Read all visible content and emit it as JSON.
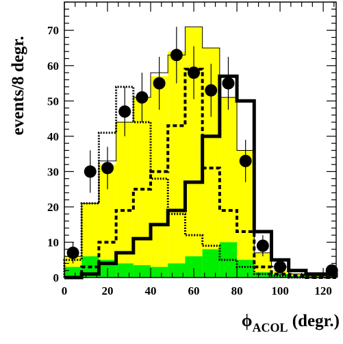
{
  "chart_data": {
    "type": "bar",
    "xlabel": {
      "symbol": "ϕ",
      "subscript": "ACOL",
      "unit": "(degr.)"
    },
    "ylabel": "events/8 degr.",
    "xlim": [
      0,
      126
    ],
    "ylim": [
      0,
      78
    ],
    "x_ticks": [
      0,
      20,
      40,
      60,
      80,
      100,
      120
    ],
    "y_ticks": [
      0,
      10,
      20,
      30,
      40,
      50,
      60,
      70
    ],
    "bin_edges": [
      0,
      8,
      16,
      24,
      32,
      40,
      48,
      56,
      64,
      72,
      80,
      88,
      96,
      104,
      112,
      120,
      126
    ],
    "colors": {
      "yellow": "#ffff00",
      "green": "#00ee00",
      "line": "#000000",
      "points": "#000000"
    },
    "series": [
      {
        "style": "filled-yellow-total",
        "values": [
          6,
          21,
          32,
          44,
          51,
          57,
          64,
          71,
          65,
          51,
          36,
          7,
          2,
          1,
          0.5,
          0.5
        ]
      },
      {
        "style": "filled-green",
        "values": [
          3,
          6,
          5,
          4,
          3.5,
          3,
          4,
          6,
          8,
          10,
          5,
          1.5,
          1,
          0.5,
          0.3,
          0.3
        ]
      },
      {
        "style": "thin-outline",
        "values": [
          6,
          21,
          33,
          44,
          51,
          58,
          63,
          71,
          65,
          51,
          36,
          7,
          3,
          1,
          0.5,
          0.5
        ]
      },
      {
        "style": "dotted",
        "values": [
          5,
          21,
          41,
          54,
          44,
          28,
          18,
          12,
          9,
          5,
          3,
          1,
          0.5,
          0,
          0,
          0
        ]
      },
      {
        "style": "dashed",
        "values": [
          0,
          3,
          10,
          19,
          25,
          30,
          43,
          59,
          31,
          19,
          13,
          3,
          1,
          0.5,
          0,
          0
        ]
      },
      {
        "style": "thick-solid",
        "values": [
          0,
          1,
          4,
          7,
          11,
          15,
          19,
          27,
          40,
          57,
          50,
          13,
          5,
          2,
          1,
          1
        ]
      }
    ],
    "points": [
      {
        "x": 4,
        "y": 7,
        "err": 3
      },
      {
        "x": 12,
        "y": 30,
        "err": 6
      },
      {
        "x": 20,
        "y": 31,
        "err": 6
      },
      {
        "x": 28,
        "y": 47,
        "err": 7
      },
      {
        "x": 36,
        "y": 51,
        "err": 7
      },
      {
        "x": 44,
        "y": 55,
        "err": 7.5
      },
      {
        "x": 52,
        "y": 63,
        "err": 8
      },
      {
        "x": 60,
        "y": 58,
        "err": 7.5
      },
      {
        "x": 68,
        "y": 53,
        "err": 7.5
      },
      {
        "x": 76,
        "y": 55,
        "err": 7.5
      },
      {
        "x": 84,
        "y": 33,
        "err": 6
      },
      {
        "x": 92,
        "y": 9,
        "err": 3
      },
      {
        "x": 100,
        "y": 3,
        "err": 2
      },
      {
        "x": 124,
        "y": 2,
        "err": 1.5
      }
    ]
  }
}
